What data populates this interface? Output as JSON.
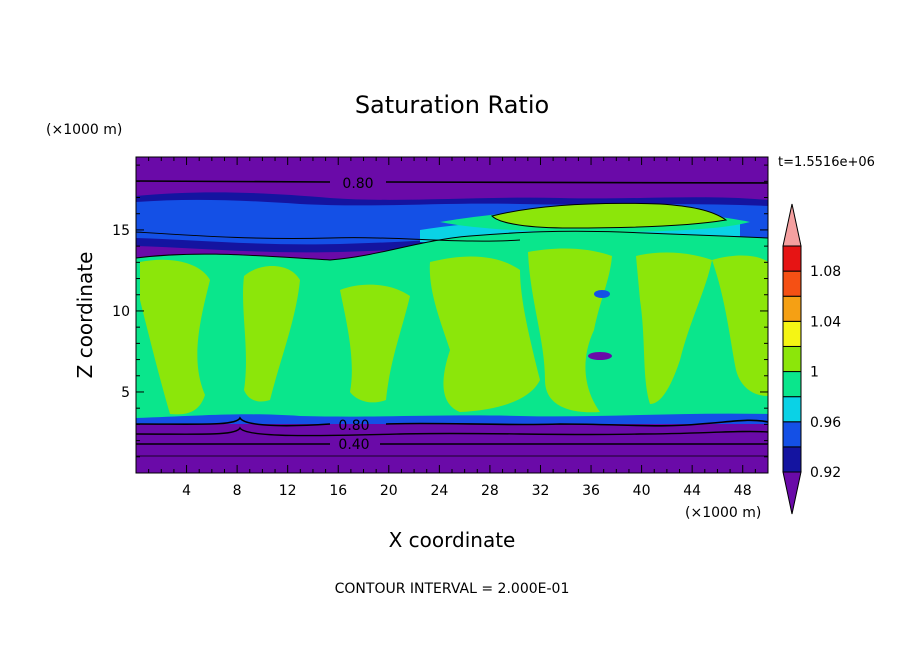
{
  "chart_data": {
    "type": "heatmap",
    "title": "Saturation Ratio",
    "xlabel": "X coordinate",
    "ylabel": "Z coordinate",
    "x_unit": "(×1000 m)",
    "y_unit": "(×1000 m)",
    "time_label": "t=1.5516e+06",
    "footer": "CONTOUR INTERVAL = 2.000E-01",
    "xlim": [
      0,
      50
    ],
    "ylim": [
      0,
      19.5
    ],
    "x_ticks": [
      "4",
      "8",
      "12",
      "16",
      "20",
      "24",
      "28",
      "32",
      "36",
      "40",
      "44",
      "48"
    ],
    "y_ticks": [
      "5",
      "10",
      "15"
    ],
    "contour_labels": [
      "0.80",
      "0.80",
      "0.40"
    ],
    "colorbar": {
      "levels": [
        0.92,
        0.94,
        0.96,
        0.98,
        1.0,
        1.02,
        1.04,
        1.06,
        1.08,
        1.1
      ],
      "tick_labels": [
        "0.92",
        "0.96",
        "1",
        "1.04",
        "1.08"
      ],
      "colors": [
        "#6a0aa8",
        "#1414a0",
        "#1450e6",
        "#0ad2e6",
        "#0ae68c",
        "#8ce60a",
        "#f5f514",
        "#f5a014",
        "#f55014",
        "#e61414",
        "#f5a0a0"
      ]
    }
  }
}
